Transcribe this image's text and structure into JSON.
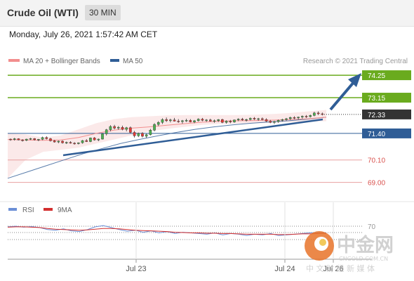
{
  "header": {
    "title": "Crude Oil (WTI)",
    "timeframe": "30 MIN",
    "timestamp": "Monday, July 26, 2021 1:57:42 AM CET"
  },
  "legend": {
    "items": [
      {
        "label": "MA 20 + Bollinger Bands",
        "color": "#f28e8e"
      },
      {
        "label": "MA 50",
        "color": "#2f5d96"
      }
    ],
    "credit": "Research © 2021 Trading Central"
  },
  "rsi_legend": {
    "items": [
      {
        "label": "RSI",
        "color": "#6b8fd6"
      },
      {
        "label": "9MA",
        "color": "#d32f2f"
      }
    ]
  },
  "watermark": {
    "brand": "中金网",
    "domain": "CNGOLD.COM.CN",
    "slogan": "中 文 财 经 新 媒 体"
  },
  "colors": {
    "target_green": "#6aab1e",
    "current_dark": "#333333",
    "pivot_blue": "#2f5d96",
    "support_red": "#d9534f",
    "arrow_blue": "#2f5d96",
    "candle_up": "#4caf50",
    "candle_down": "#e53935"
  },
  "chart_data": [
    {
      "type": "candlestick",
      "x_labels": [
        "Jul 23",
        "Jul 24",
        "Jul 26"
      ],
      "ylim": [
        68.3,
        74.7
      ],
      "levels": [
        {
          "value": 74.25,
          "label": "74.25",
          "role": "target"
        },
        {
          "value": 73.15,
          "label": "73.15",
          "role": "target"
        },
        {
          "value": 72.33,
          "label": "72.33",
          "role": "current"
        },
        {
          "value": 71.4,
          "label": "71.40",
          "role": "pivot"
        },
        {
          "value": 70.1,
          "label": "70.10",
          "role": "support"
        },
        {
          "value": 69.0,
          "label": "69.00",
          "role": "support"
        }
      ],
      "candles": [
        [
          71.12,
          71.15,
          71.04,
          71.1
        ],
        [
          71.1,
          71.18,
          71.05,
          71.14
        ],
        [
          71.14,
          71.16,
          71.06,
          71.08
        ],
        [
          71.08,
          71.12,
          71.0,
          71.06
        ],
        [
          71.06,
          71.14,
          71.02,
          71.12
        ],
        [
          71.12,
          71.18,
          71.08,
          71.15
        ],
        [
          71.15,
          71.17,
          71.05,
          71.09
        ],
        [
          71.09,
          71.13,
          71.02,
          71.11
        ],
        [
          71.11,
          71.24,
          71.07,
          71.2
        ],
        [
          71.2,
          71.26,
          71.1,
          71.14
        ],
        [
          71.14,
          71.18,
          71.0,
          71.04
        ],
        [
          71.04,
          71.08,
          70.95,
          70.98
        ],
        [
          70.98,
          71.05,
          70.92,
          71.02
        ],
        [
          71.02,
          71.06,
          70.9,
          70.94
        ],
        [
          70.94,
          71.0,
          70.88,
          70.96
        ],
        [
          70.96,
          71.02,
          70.9,
          70.92
        ],
        [
          70.92,
          70.97,
          70.85,
          70.9
        ],
        [
          70.9,
          70.96,
          70.86,
          70.94
        ],
        [
          70.94,
          71.08,
          70.9,
          71.05
        ],
        [
          71.05,
          71.12,
          70.98,
          71.0
        ],
        [
          71.0,
          71.2,
          70.97,
          71.18
        ],
        [
          71.18,
          71.22,
          71.05,
          71.08
        ],
        [
          71.08,
          71.15,
          71.02,
          71.12
        ],
        [
          71.12,
          71.42,
          71.1,
          71.38
        ],
        [
          71.38,
          71.62,
          71.3,
          71.58
        ],
        [
          71.58,
          71.8,
          71.5,
          71.74
        ],
        [
          71.74,
          71.82,
          71.6,
          71.66
        ],
        [
          71.66,
          71.76,
          71.58,
          71.7
        ],
        [
          71.7,
          71.78,
          71.55,
          71.6
        ],
        [
          71.6,
          71.72,
          71.5,
          71.68
        ],
        [
          71.68,
          71.74,
          71.4,
          71.45
        ],
        [
          71.45,
          71.52,
          71.2,
          71.28
        ],
        [
          71.28,
          71.44,
          71.22,
          71.4
        ],
        [
          71.4,
          71.46,
          71.2,
          71.26
        ],
        [
          71.26,
          71.38,
          71.18,
          71.34
        ],
        [
          71.34,
          71.62,
          71.3,
          71.56
        ],
        [
          71.56,
          71.9,
          71.5,
          71.84
        ],
        [
          71.84,
          72.0,
          71.76,
          71.94
        ],
        [
          71.94,
          72.14,
          71.86,
          72.08
        ],
        [
          72.08,
          72.18,
          71.96,
          72.02
        ],
        [
          72.02,
          72.12,
          71.94,
          72.06
        ],
        [
          72.06,
          72.16,
          71.98,
          72.0
        ],
        [
          72.0,
          72.1,
          71.92,
          71.98
        ],
        [
          71.98,
          72.06,
          71.88,
          72.02
        ],
        [
          72.02,
          72.12,
          71.96,
          72.04
        ],
        [
          72.04,
          72.1,
          71.94,
          71.96
        ],
        [
          71.96,
          72.06,
          71.9,
          72.02
        ],
        [
          72.02,
          72.14,
          71.98,
          72.1
        ],
        [
          72.1,
          72.16,
          72.0,
          72.04
        ],
        [
          72.04,
          72.1,
          71.96,
          72.06
        ],
        [
          72.06,
          72.12,
          71.98,
          72.0
        ],
        [
          72.0,
          72.08,
          71.92,
          72.02
        ],
        [
          72.02,
          72.1,
          71.96,
          72.08
        ],
        [
          72.08,
          72.12,
          71.9,
          71.94
        ],
        [
          71.94,
          72.04,
          71.88,
          72.0
        ],
        [
          72.0,
          72.06,
          71.9,
          71.96
        ],
        [
          71.96,
          72.08,
          71.92,
          72.06
        ],
        [
          72.06,
          72.14,
          72.0,
          72.1
        ],
        [
          72.1,
          72.16,
          72.02,
          72.06
        ],
        [
          72.06,
          72.12,
          71.98,
          72.08
        ],
        [
          72.08,
          72.18,
          72.04,
          72.14
        ],
        [
          72.14,
          72.2,
          72.06,
          72.1
        ],
        [
          72.1,
          72.16,
          72.02,
          72.12
        ],
        [
          72.12,
          72.18,
          72.04,
          72.08
        ],
        [
          72.08,
          72.14,
          71.96,
          72.0
        ],
        [
          72.0,
          72.06,
          71.9,
          71.94
        ],
        [
          71.94,
          72.02,
          71.86,
          71.98
        ],
        [
          71.98,
          72.08,
          71.92,
          72.04
        ],
        [
          72.04,
          72.12,
          71.98,
          72.08
        ],
        [
          72.08,
          72.16,
          72.02,
          72.12
        ],
        [
          72.12,
          72.22,
          72.06,
          72.18
        ],
        [
          72.18,
          72.24,
          72.1,
          72.16
        ],
        [
          72.16,
          72.22,
          72.08,
          72.2
        ],
        [
          72.2,
          72.28,
          72.12,
          72.24
        ],
        [
          72.24,
          72.3,
          72.16,
          72.22
        ],
        [
          72.22,
          72.32,
          72.18,
          72.28
        ],
        [
          72.28,
          72.46,
          72.24,
          72.4
        ],
        [
          72.4,
          72.48,
          72.3,
          72.36
        ],
        [
          72.36,
          72.42,
          72.28,
          72.33
        ]
      ],
      "ma20": [
        71.1,
        71.08,
        71.06,
        71.08,
        71.2,
        71.4,
        71.56,
        71.66,
        71.72,
        71.8,
        71.88,
        71.95,
        72.0,
        72.02,
        72.03,
        72.05,
        72.08,
        72.12,
        72.2
      ],
      "ma50": [
        69.2,
        69.5,
        69.8,
        70.1,
        70.4,
        70.65,
        70.9,
        71.1,
        71.28,
        71.45,
        71.6,
        71.72,
        71.82,
        71.9,
        71.96,
        72.02,
        72.1,
        72.2
      ],
      "bollinger_upper": [
        71.4,
        71.35,
        71.2,
        71.3,
        71.6,
        71.9,
        72.1,
        72.2,
        72.24,
        72.28,
        72.3,
        72.3,
        72.3,
        72.3,
        72.32,
        72.35,
        72.4,
        72.48,
        72.55
      ],
      "bollinger_lower": [
        69.2,
        70.1,
        70.5,
        70.6,
        70.7,
        70.9,
        71.1,
        71.3,
        71.5,
        71.62,
        71.72,
        71.82,
        71.86,
        71.88,
        71.9,
        71.92,
        71.95,
        71.98,
        72.0
      ]
    },
    {
      "type": "line",
      "name": "RSI",
      "levels": [
        70,
        50,
        30
      ],
      "level_labels": [
        "70",
        "",
        ""
      ],
      "ylim": [
        0,
        100
      ],
      "series": [
        {
          "name": "RSI",
          "values": [
            68,
            70,
            67,
            69,
            66,
            60,
            58,
            62,
            56,
            54,
            60,
            68,
            72,
            66,
            60,
            55,
            58,
            52,
            56,
            50,
            54,
            48,
            52,
            50,
            48,
            46,
            50,
            44,
            48,
            46,
            42,
            46,
            44,
            48,
            42,
            44,
            46,
            48,
            50,
            52,
            50
          ]
        },
        {
          "name": "9MA",
          "values": [
            67,
            68,
            68,
            67,
            66,
            63,
            61,
            60,
            59,
            58,
            59,
            61,
            63,
            63,
            62,
            60,
            58,
            57,
            56,
            55,
            54,
            52,
            51,
            50,
            50,
            49,
            49,
            48,
            48,
            47,
            46,
            46,
            46,
            46,
            45,
            45,
            46,
            47,
            47,
            48,
            49
          ]
        }
      ]
    }
  ]
}
